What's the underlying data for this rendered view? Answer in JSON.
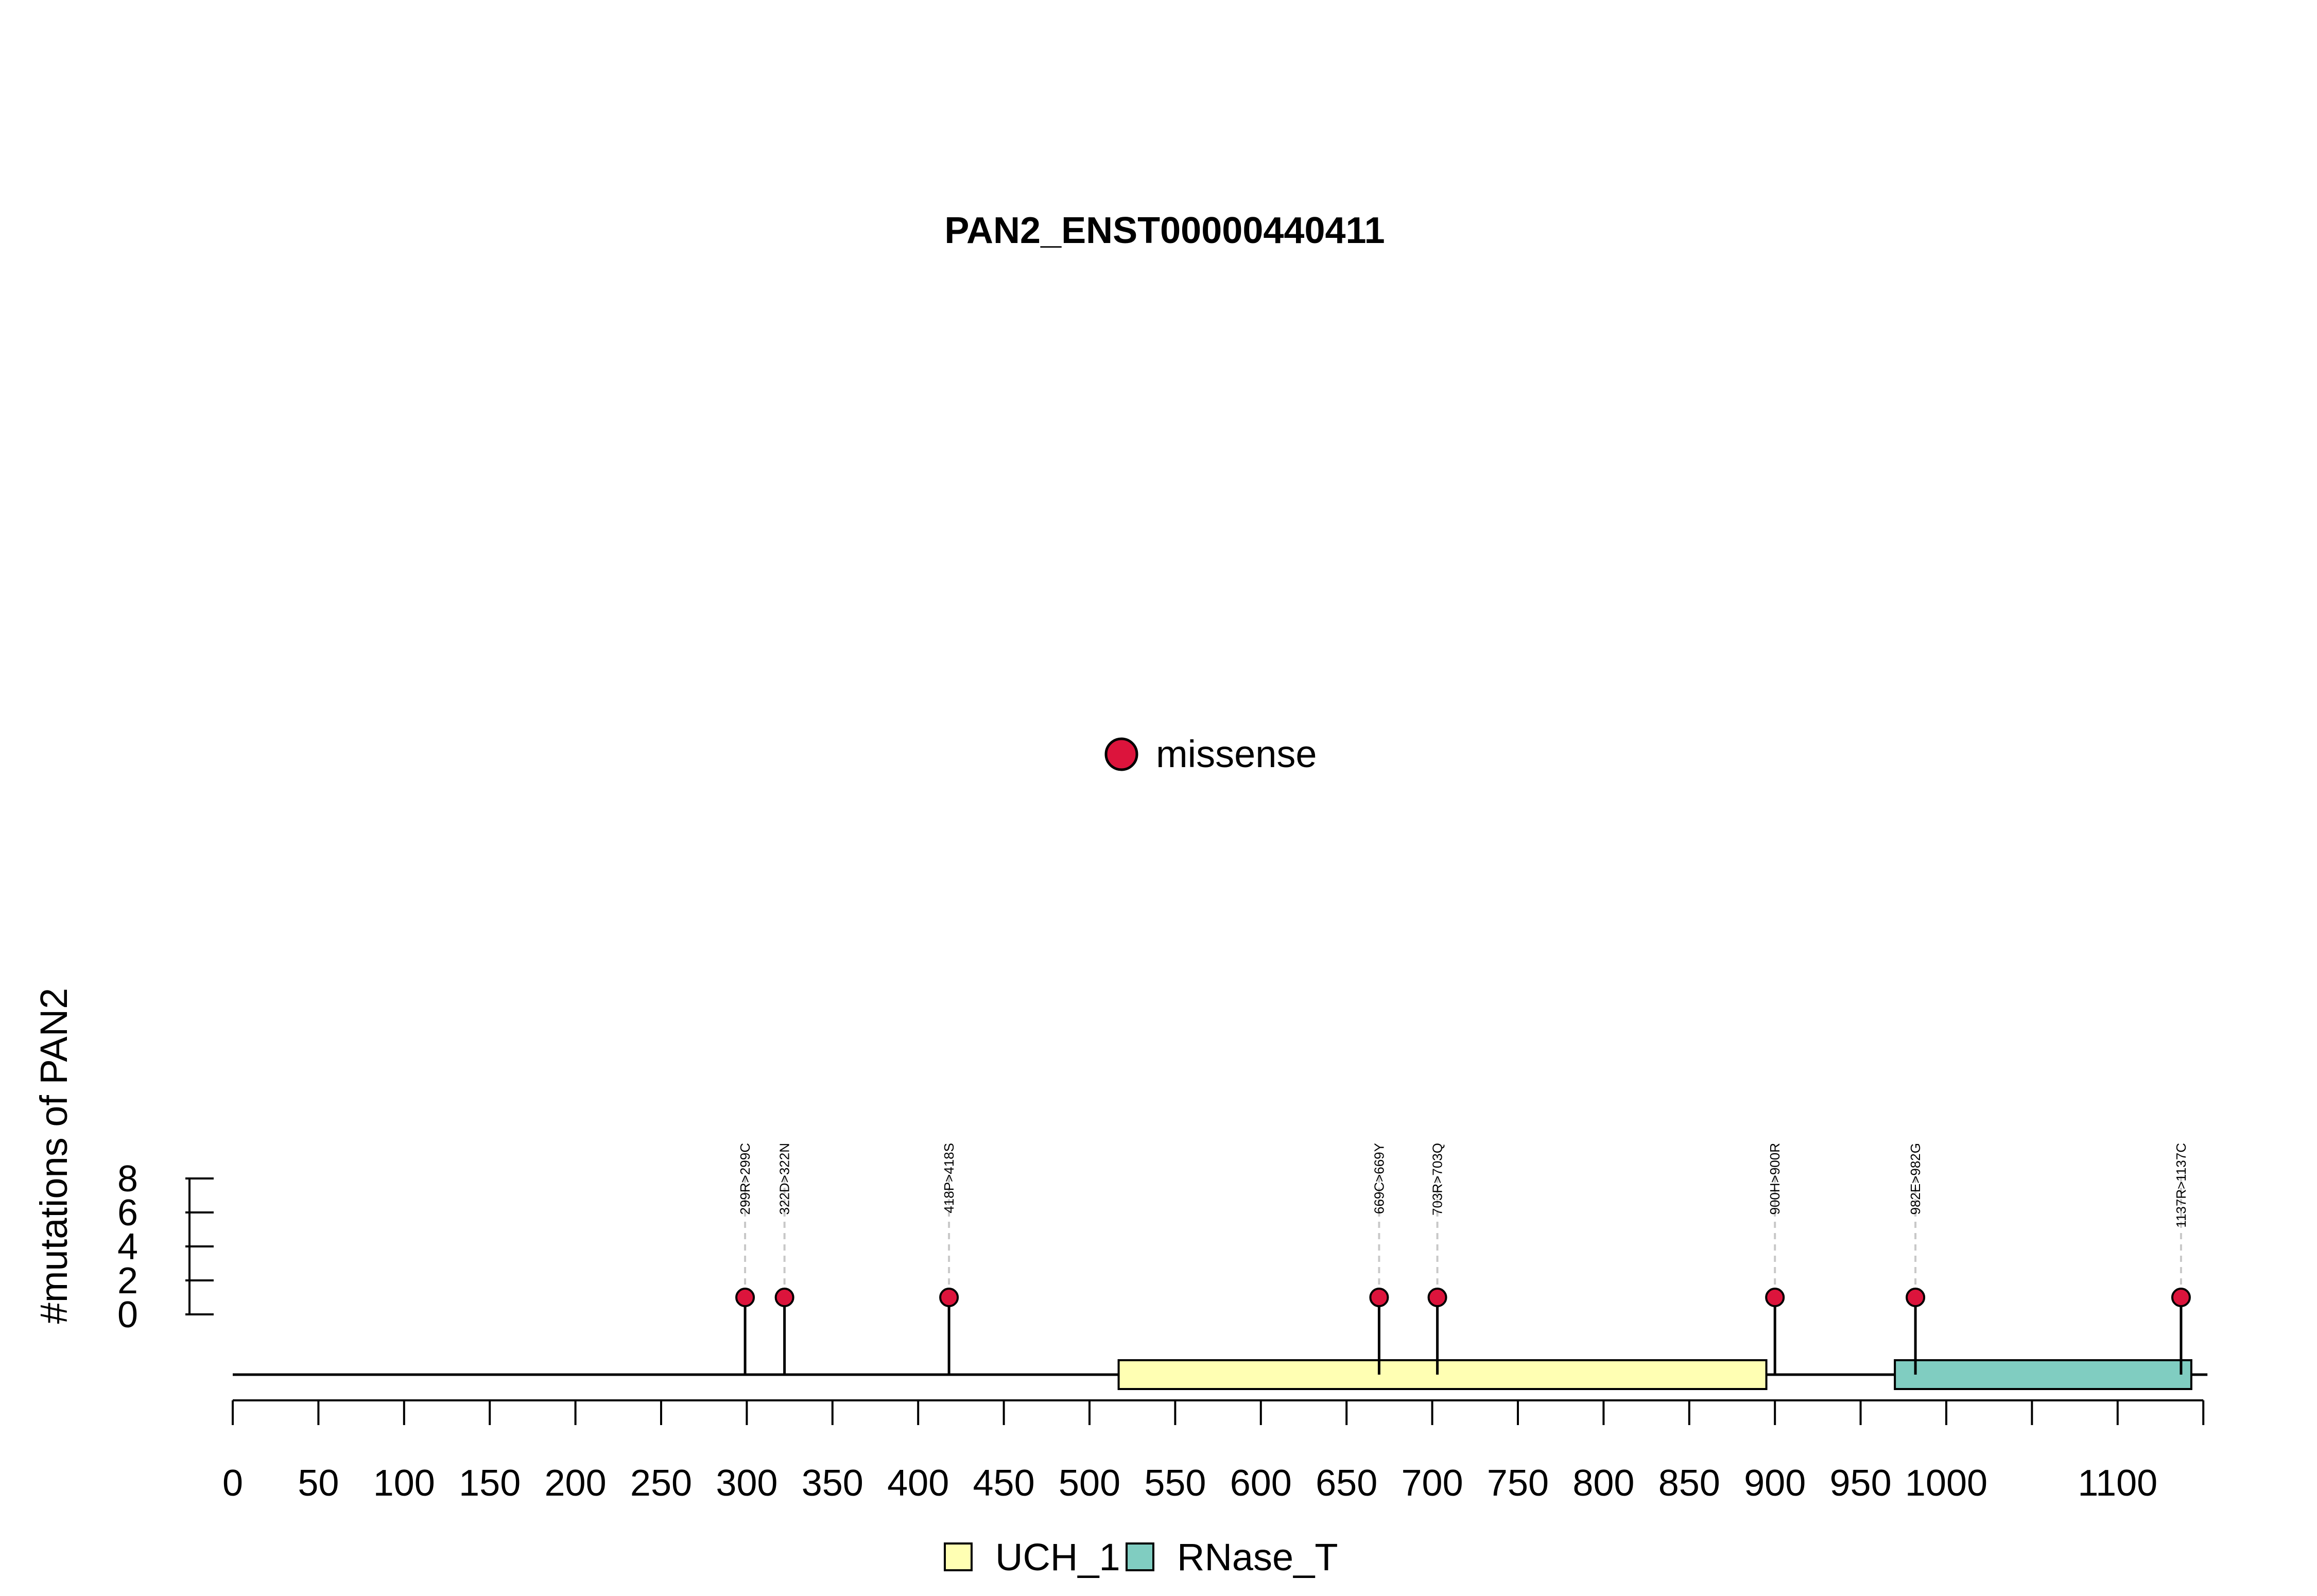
{
  "chart_data": {
    "type": "lollipop",
    "title": "PAN2_ENST00000440411",
    "xlabel": "",
    "ylabel": "#mutations of PAN2",
    "xlim": [
      0,
      1150
    ],
    "ylim": [
      0,
      8
    ],
    "xticks": [
      0,
      50,
      100,
      150,
      200,
      250,
      300,
      350,
      400,
      450,
      500,
      550,
      600,
      650,
      700,
      750,
      800,
      850,
      900,
      950,
      1000,
      1050,
      1100,
      1150
    ],
    "xtick_labels": [
      "0",
      "50",
      "100",
      "150",
      "200",
      "250",
      "300",
      "350",
      "400",
      "450",
      "500",
      "550",
      "600",
      "650",
      "700",
      "750",
      "800",
      "850",
      "900",
      "950",
      "1000",
      "",
      "1100",
      ""
    ],
    "yticks": [
      0,
      2,
      4,
      6,
      8
    ],
    "ytick_labels": [
      "0",
      "2",
      "4",
      "6",
      "8"
    ],
    "protein_length": 1150,
    "mutation_legend": [
      {
        "label": "missense",
        "color": "#DC143C"
      }
    ],
    "mutations": [
      {
        "position": 299,
        "count": 1,
        "label": "299R>299C",
        "type": "missense"
      },
      {
        "position": 322,
        "count": 1,
        "label": "322D>322N",
        "type": "missense"
      },
      {
        "position": 418,
        "count": 1,
        "label": "418P>418S",
        "type": "missense"
      },
      {
        "position": 669,
        "count": 1,
        "label": "669C>669Y",
        "type": "missense"
      },
      {
        "position": 703,
        "count": 1,
        "label": "703R>703Q",
        "type": "missense"
      },
      {
        "position": 900,
        "count": 1,
        "label": "900H>900R",
        "type": "missense"
      },
      {
        "position": 982,
        "count": 1,
        "label": "982E>982G",
        "type": "missense"
      },
      {
        "position": 1137,
        "count": 1,
        "label": "1137R>1137C",
        "type": "missense"
      }
    ],
    "domains": [
      {
        "name": "UCH_1",
        "start": 517,
        "end": 895,
        "color": "#FFFFB3"
      },
      {
        "name": "RNase_T",
        "start": 970,
        "end": 1143,
        "color": "#80CDC1"
      }
    ]
  }
}
